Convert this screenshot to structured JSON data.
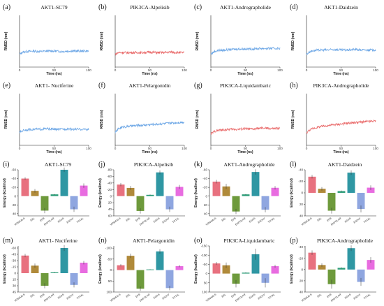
{
  "chart_data": [
    {
      "type": "line",
      "panel": "(a)",
      "title": "AKT1-SC79",
      "xlabel": "Time (ns)",
      "ylabel": "RMSD (nm)",
      "xlim": [
        0,
        100
      ],
      "ylim": [
        0,
        1
      ],
      "xticks": [
        0,
        50,
        100
      ],
      "color": "#6fa8e6",
      "x": [
        0,
        5,
        10,
        20,
        30,
        40,
        50,
        60,
        70,
        80,
        90,
        100
      ],
      "y": [
        0.25,
        0.29,
        0.3,
        0.31,
        0.3,
        0.31,
        0.31,
        0.3,
        0.31,
        0.31,
        0.31,
        0.31
      ]
    },
    {
      "type": "line",
      "panel": "(b)",
      "title": "PIK3CA-Alpelisib",
      "xlabel": "Time (ns)",
      "ylabel": "RMSD (nm)",
      "xlim": [
        0,
        100
      ],
      "ylim": [
        0,
        1
      ],
      "xticks": [
        0,
        50,
        100
      ],
      "color": "#e96a6a",
      "x": [
        0,
        5,
        10,
        20,
        30,
        40,
        50,
        60,
        70,
        80,
        90,
        100
      ],
      "y": [
        0.25,
        0.28,
        0.28,
        0.28,
        0.28,
        0.28,
        0.29,
        0.28,
        0.28,
        0.29,
        0.28,
        0.28
      ]
    },
    {
      "type": "line",
      "panel": "(c)",
      "title": "AKT1-Andrographolide",
      "xlabel": "Time (ns)",
      "ylabel": "RMSD (nm)",
      "xlim": [
        0,
        100
      ],
      "ylim": [
        0,
        1
      ],
      "xticks": [
        0,
        50,
        100
      ],
      "color": "#6fa8e6",
      "x": [
        0,
        5,
        10,
        20,
        30,
        40,
        50,
        60,
        70,
        80,
        90,
        100
      ],
      "y": [
        0.25,
        0.3,
        0.32,
        0.33,
        0.34,
        0.35,
        0.35,
        0.35,
        0.36,
        0.36,
        0.36,
        0.36
      ]
    },
    {
      "type": "line",
      "panel": "(d)",
      "title": "AKT1-Daidzein",
      "xlabel": "Time (ns)",
      "ylabel": "RMSD (nm)",
      "xlim": [
        0,
        100
      ],
      "ylim": [
        0,
        1
      ],
      "xticks": [
        0,
        50,
        100
      ],
      "color": "#6fa8e6",
      "x": [
        0,
        5,
        10,
        20,
        30,
        40,
        50,
        60,
        70,
        80,
        90,
        100
      ],
      "y": [
        0.25,
        0.3,
        0.32,
        0.33,
        0.33,
        0.34,
        0.33,
        0.33,
        0.34,
        0.33,
        0.33,
        0.33
      ]
    },
    {
      "type": "line",
      "panel": "(e)",
      "title": "AKT1- Nuciferine",
      "xlabel": "Time (ns)",
      "ylabel": "RMSD (nm)",
      "xlim": [
        0,
        100
      ],
      "ylim": [
        0,
        1
      ],
      "xticks": [
        0,
        50,
        100
      ],
      "color": "#6fa8e6",
      "x": [
        0,
        5,
        10,
        20,
        30,
        40,
        50,
        60,
        70,
        80,
        90,
        100
      ],
      "y": [
        0.25,
        0.29,
        0.3,
        0.31,
        0.31,
        0.32,
        0.31,
        0.31,
        0.32,
        0.31,
        0.31,
        0.31
      ]
    },
    {
      "type": "line",
      "panel": "(f)",
      "title": "AKT1-Pelargonidin",
      "xlabel": "Time (ns)",
      "ylabel": "RMSD (nm)",
      "xlim": [
        0,
        100
      ],
      "ylim": [
        0,
        1
      ],
      "xticks": [
        0,
        50,
        100
      ],
      "color": "#6fa8e6",
      "x": [
        0,
        5,
        10,
        20,
        30,
        40,
        50,
        60,
        70,
        80,
        90,
        100
      ],
      "y": [
        0.25,
        0.32,
        0.35,
        0.37,
        0.38,
        0.39,
        0.4,
        0.41,
        0.42,
        0.43,
        0.44,
        0.45
      ]
    },
    {
      "type": "line",
      "panel": "(g)",
      "title": "PIK3CA-Liquidambaric",
      "xlabel": "Time (ns)",
      "ylabel": "RMSD (nm)",
      "xlim": [
        0,
        100
      ],
      "ylim": [
        0,
        1
      ],
      "xticks": [
        0,
        50,
        100
      ],
      "color": "#e96a6a",
      "x": [
        0,
        5,
        10,
        20,
        30,
        40,
        50,
        60,
        70,
        80,
        90,
        100
      ],
      "y": [
        0.22,
        0.27,
        0.29,
        0.3,
        0.31,
        0.31,
        0.32,
        0.31,
        0.33,
        0.33,
        0.32,
        0.33
      ]
    },
    {
      "type": "line",
      "panel": "(h)",
      "title": "PIK3CA-Andrographolide",
      "xlabel": "Time (ns)",
      "ylabel": "RMSD (nm)",
      "xlim": [
        0,
        100
      ],
      "ylim": [
        0,
        1
      ],
      "xticks": [
        0,
        50,
        100
      ],
      "color": "#e96a6a",
      "x": [
        0,
        5,
        10,
        20,
        30,
        40,
        50,
        60,
        70,
        80,
        90,
        100
      ],
      "y": [
        0.24,
        0.3,
        0.33,
        0.36,
        0.38,
        0.4,
        0.41,
        0.43,
        0.44,
        0.45,
        0.46,
        0.47
      ]
    },
    {
      "type": "bar",
      "panel": "(i)",
      "title": "AKT1-SC79",
      "ylabel": "Energy (kcal/mol)",
      "categories": [
        "VDWAALS",
        "EEL",
        "EPB",
        "ENPOLAR",
        "EGAS",
        "ESOLV",
        "TOTAL"
      ],
      "colors": [
        "#e8717f",
        "#b08a3a",
        "#6e9a3c",
        "#2f9e7a",
        "#2f97a3",
        "#8fa6e0",
        "#e86ce0"
      ],
      "yticks": [
        -60,
        -40,
        -20,
        0,
        20,
        40
      ],
      "ylim": [
        -60,
        45
      ],
      "values": [
        -40,
        -12,
        33,
        -4,
        -60,
        30,
        -24
      ],
      "errors": [
        3,
        4,
        6,
        1,
        5,
        6,
        5
      ]
    },
    {
      "type": "bar",
      "panel": "(j)",
      "title": "PIK3CA-Alpelisib",
      "ylabel": "Energy (kcal/mol)",
      "categories": [
        "VDWAALS",
        "EEL",
        "EPB",
        "ENPOLAR",
        "EGAS",
        "ESOLV",
        "TOTAL"
      ],
      "colors": [
        "#e8717f",
        "#b08a3a",
        "#6e9a3c",
        "#2f9e7a",
        "#2f97a3",
        "#8fa6e0",
        "#e86ce0"
      ],
      "yticks": [
        -80,
        -60,
        -40,
        -20,
        0,
        20,
        40,
        60
      ],
      "ylim": [
        -80,
        60
      ],
      "values": [
        -35,
        -25,
        45,
        -4,
        -72,
        40,
        -28
      ],
      "errors": [
        5,
        6,
        8,
        1,
        6,
        8,
        6
      ]
    },
    {
      "type": "bar",
      "panel": "(k)",
      "title": "AKT1-Andrographolide",
      "ylabel": "Energy (kcal/mol)",
      "categories": [
        "VDWAALS",
        "EEL",
        "EPB",
        "ENPOLAR",
        "EGAS",
        "ESOLV",
        "TOTAL"
      ],
      "colors": [
        "#e8717f",
        "#b08a3a",
        "#6e9a3c",
        "#2f9e7a",
        "#2f97a3",
        "#8fa6e0",
        "#e86ce0"
      ],
      "yticks": [
        -60,
        -40,
        -20,
        0,
        20,
        40
      ],
      "ylim": [
        -60,
        45
      ],
      "values": [
        -33,
        -22,
        35,
        -4,
        -55,
        31,
        -19
      ],
      "errors": [
        4,
        6,
        6,
        1,
        6,
        6,
        4
      ]
    },
    {
      "type": "bar",
      "panel": "(l)",
      "title": "AKT1-Daidzein",
      "ylabel": "Energy (kcal/mol)",
      "categories": [
        "VDWAALS",
        "EEL",
        "EPB",
        "ENPOLAR",
        "EGAS",
        "ESOLV",
        "TOTAL"
      ],
      "colors": [
        "#e8717f",
        "#b08a3a",
        "#6e9a3c",
        "#2f9e7a",
        "#2f97a3",
        "#8fa6e0",
        "#e86ce0"
      ],
      "yticks": [
        -40,
        -20,
        0,
        20,
        40
      ],
      "ylim": [
        -40,
        40
      ],
      "values": [
        -28,
        -7,
        31,
        -3,
        -35,
        28,
        -9
      ],
      "errors": [
        3,
        3,
        5,
        1,
        4,
        6,
        4
      ]
    },
    {
      "type": "bar",
      "panel": "(m)",
      "title": "AKT1- Nuciferine",
      "ylabel": "Energy (kcal/mol)",
      "categories": [
        "VDWAALS",
        "EEL",
        "EPB",
        "ENPOLAR",
        "EGAS",
        "ESOLV",
        "TOTAL"
      ],
      "colors": [
        "#e8717f",
        "#b08a3a",
        "#6e9a3c",
        "#2f9e7a",
        "#2f97a3",
        "#8fa6e0",
        "#e86ce0"
      ],
      "yticks": [
        -60,
        -45,
        -30,
        -15,
        0,
        15,
        30,
        45
      ],
      "ylim": [
        -65,
        45
      ],
      "values": [
        -42,
        -18,
        30,
        -2,
        -60,
        28,
        -25
      ],
      "errors": [
        4,
        5,
        6,
        1,
        7,
        6,
        4
      ]
    },
    {
      "type": "bar",
      "panel": "(n)",
      "title": "AKT1-Pelargonidin",
      "ylabel": "Energy (kcal/mol)",
      "categories": [
        "VDWAALS",
        "EEL",
        "EPB",
        "ENPOLAR",
        "EGAS",
        "ESOLV",
        "TOTAL"
      ],
      "colors": [
        "#e8717f",
        "#b08a3a",
        "#6e9a3c",
        "#2f9e7a",
        "#2f97a3",
        "#8fa6e0",
        "#e86ce0"
      ],
      "yticks": [
        -100,
        -50,
        0,
        50,
        100
      ],
      "ylim": [
        -110,
        100
      ],
      "values": [
        -22,
        -65,
        85,
        -3,
        -85,
        82,
        -18
      ],
      "errors": [
        5,
        10,
        10,
        1,
        10,
        10,
        5
      ]
    },
    {
      "type": "bar",
      "panel": "(o)",
      "title": "PIK3CA-Liquidambaric",
      "ylabel": "Energy (kcal/mol)",
      "categories": [
        "VDWAALS",
        "EEL",
        "EPB",
        "ENPOLAR",
        "EGAS",
        "ESOLV",
        "TOTAL"
      ],
      "colors": [
        "#e8717f",
        "#b08a3a",
        "#6e9a3c",
        "#2f9e7a",
        "#2f97a3",
        "#8fa6e0",
        "#e86ce0"
      ],
      "yticks": [
        -150,
        -100,
        -50,
        0,
        50,
        100
      ],
      "ylim": [
        -150,
        100
      ],
      "values": [
        -55,
        -45,
        55,
        -5,
        -105,
        50,
        -40
      ],
      "errors": [
        8,
        15,
        20,
        2,
        30,
        25,
        8
      ]
    },
    {
      "type": "bar",
      "panel": "(p)",
      "title": "PIK3CA-Andrographolide",
      "ylabel": "Energy (kcal/mol)",
      "categories": [
        "VDWAALS",
        "EEL",
        "EPB",
        "ENPOLAR",
        "EGAS",
        "ESOLV",
        "TOTAL"
      ],
      "colors": [
        "#e8717f",
        "#b08a3a",
        "#6e9a3c",
        "#2f9e7a",
        "#2f97a3",
        "#8fa6e0",
        "#e86ce0"
      ],
      "yticks": [
        -40,
        -20,
        0,
        20,
        40
      ],
      "ylim": [
        -42,
        40
      ],
      "values": [
        -30,
        -8,
        26,
        -3,
        -38,
        22,
        -17
      ],
      "errors": [
        4,
        3,
        8,
        1,
        5,
        7,
        5
      ]
    }
  ]
}
